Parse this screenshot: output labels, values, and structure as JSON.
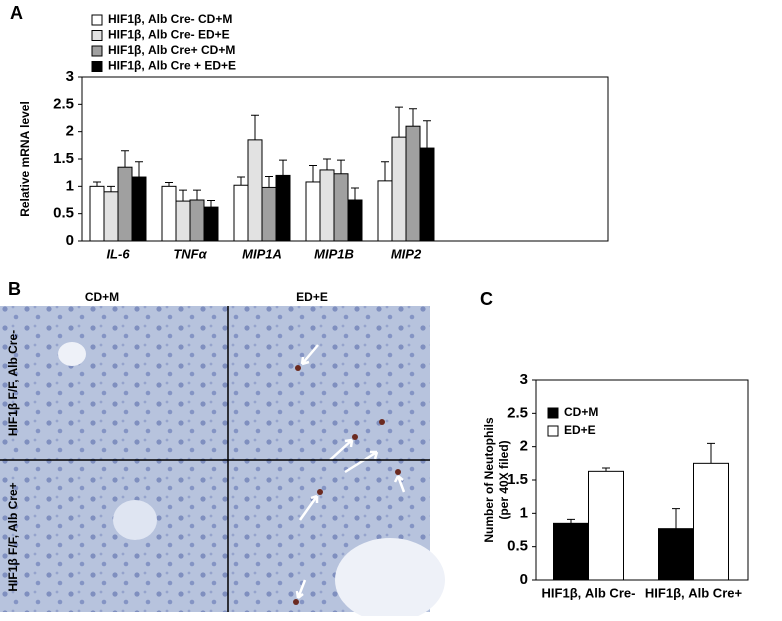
{
  "chart_data": [
    {
      "type": "bar",
      "panel_label": "A",
      "ylabel": "Relative mRNA level",
      "categories": [
        "IL-6",
        "TNFα",
        "MIP1A",
        "MIP1B",
        "MIP2"
      ],
      "series": [
        {
          "name": "HIF1β, Alb Cre- CD+M",
          "color": "#ffffff",
          "values": [
            1.0,
            1.0,
            1.02,
            1.08,
            1.1
          ],
          "errors": [
            0.08,
            0.07,
            0.15,
            0.3,
            0.35
          ]
        },
        {
          "name": "HIF1β, Alb Cre- ED+E",
          "color": "#e2e2e2",
          "values": [
            0.9,
            0.73,
            1.85,
            1.3,
            1.9
          ],
          "errors": [
            0.1,
            0.2,
            0.45,
            0.2,
            0.55
          ]
        },
        {
          "name": "HIF1β, Alb Cre+ CD+M",
          "color": "#a0a0a0",
          "values": [
            1.35,
            0.75,
            0.98,
            1.23,
            2.1
          ],
          "errors": [
            0.3,
            0.18,
            0.2,
            0.25,
            0.32
          ]
        },
        {
          "name": "HIF1β, Alb Cre + ED+E",
          "color": "#000000",
          "values": [
            1.17,
            0.62,
            1.2,
            0.75,
            1.7
          ],
          "errors": [
            0.28,
            0.12,
            0.28,
            0.22,
            0.5
          ]
        }
      ],
      "ylim": [
        0,
        3
      ],
      "yticks": [
        0,
        0.5,
        1,
        1.5,
        2,
        2.5,
        3
      ],
      "legend": "upper-left"
    },
    {
      "type": "bar",
      "panel_label": "C",
      "ylabel": [
        "Number of Neutophils",
        "(per 40X filed)"
      ],
      "categories": [
        "HIF1β, Alb Cre-",
        "HIF1β, Alb Cre+"
      ],
      "series": [
        {
          "name": "CD+M",
          "color": "#000000",
          "values": [
            0.85,
            0.77
          ],
          "errors": [
            0.06,
            0.3
          ]
        },
        {
          "name": "ED+E",
          "color": "#ffffff",
          "values": [
            1.63,
            1.75
          ],
          "errors": [
            0.05,
            0.3
          ]
        }
      ],
      "ylim": [
        0,
        3
      ],
      "yticks": [
        0,
        0.5,
        1,
        1.5,
        2,
        2.5,
        3
      ],
      "legend": "upper-left"
    }
  ],
  "image_panel": {
    "panel_label": "B",
    "columns": [
      "CD+M",
      "ED+E"
    ],
    "rows": [
      "HIF1β F/F, Alb Cre-",
      "HIF1β F/F, Alb Cre+"
    ]
  }
}
